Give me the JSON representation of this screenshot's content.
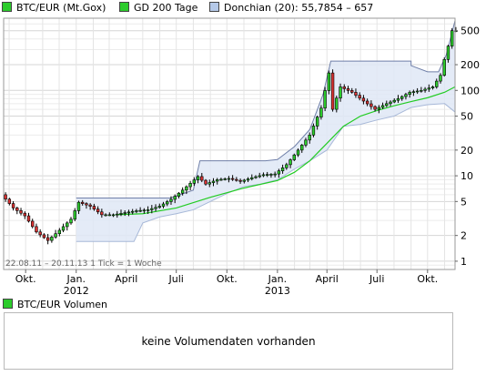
{
  "legend": [
    {
      "label": "BTC/EUR (Mt.Gox)",
      "color": "#2ccc2c"
    },
    {
      "label": "GD 200 Tage",
      "color": "#2ccc2c"
    },
    {
      "label": "Donchian (20): 55,7854 – 657",
      "color": "#b5c9e8"
    }
  ],
  "chart_data": {
    "type": "candlestick",
    "yscale": "log",
    "ylim": [
      0.8,
      700
    ],
    "y_ticks": [
      1,
      2,
      5,
      10,
      20,
      50,
      100,
      200,
      500
    ],
    "y_tick_labels": [
      "1",
      "2",
      "5",
      "10",
      "20",
      "50",
      "100",
      "200",
      "500"
    ],
    "x_range": [
      "2011-08-22",
      "2013-11-20"
    ],
    "x_ticks": [
      {
        "date": "2011-10-01",
        "label": "Okt."
      },
      {
        "date": "2012-01-01",
        "label": "Jan.",
        "sublabel": "2012"
      },
      {
        "date": "2012-04-01",
        "label": "April"
      },
      {
        "date": "2012-07-01",
        "label": "Juli"
      },
      {
        "date": "2012-10-01",
        "label": "Okt."
      },
      {
        "date": "2013-01-01",
        "label": "Jan.",
        "sublabel": "2013"
      },
      {
        "date": "2013-04-01",
        "label": "April"
      },
      {
        "date": "2013-07-01",
        "label": "Juli"
      },
      {
        "date": "2013-10-01",
        "label": "Okt."
      }
    ],
    "grid": true,
    "range_label": "22.08.11 – 20.11.13   1 Tick = 1 Woche",
    "price_path": [
      [
        "2011-08-22",
        6.0
      ],
      [
        "2011-09-12",
        4.2
      ],
      [
        "2011-10-03",
        3.4
      ],
      [
        "2011-10-24",
        2.2
      ],
      [
        "2011-11-14",
        1.75
      ],
      [
        "2011-12-05",
        2.3
      ],
      [
        "2011-12-26",
        3.1
      ],
      [
        "2012-01-09",
        4.9
      ],
      [
        "2012-01-30",
        4.4
      ],
      [
        "2012-02-20",
        3.5
      ],
      [
        "2012-03-12",
        3.5
      ],
      [
        "2012-04-02",
        3.7
      ],
      [
        "2012-04-23",
        3.9
      ],
      [
        "2012-05-14",
        4.0
      ],
      [
        "2012-06-04",
        4.4
      ],
      [
        "2012-06-25",
        5.3
      ],
      [
        "2012-07-16",
        6.8
      ],
      [
        "2012-08-13",
        9.8
      ],
      [
        "2012-08-27",
        8.0
      ],
      [
        "2012-09-17",
        9.0
      ],
      [
        "2012-10-08",
        9.3
      ],
      [
        "2012-10-29",
        8.6
      ],
      [
        "2012-11-19",
        9.5
      ],
      [
        "2012-12-10",
        10.3
      ],
      [
        "2012-12-31",
        10.5
      ],
      [
        "2013-01-21",
        13.5
      ],
      [
        "2013-02-11",
        20.0
      ],
      [
        "2013-03-04",
        30.0
      ],
      [
        "2013-03-25",
        62.0
      ],
      [
        "2013-04-08",
        160.0
      ],
      [
        "2013-04-15",
        60.0
      ],
      [
        "2013-04-29",
        110.0
      ],
      [
        "2013-05-20",
        95.0
      ],
      [
        "2013-06-10",
        75.0
      ],
      [
        "2013-07-01",
        60.0
      ],
      [
        "2013-07-22",
        70.0
      ],
      [
        "2013-08-12",
        80.0
      ],
      [
        "2013-09-02",
        95.0
      ],
      [
        "2013-09-23",
        100.0
      ],
      [
        "2013-10-14",
        110.0
      ],
      [
        "2013-10-28",
        150.0
      ],
      [
        "2013-11-04",
        230.0
      ],
      [
        "2013-11-11",
        330.0
      ],
      [
        "2013-11-18",
        500.0
      ]
    ],
    "sma200_path": [
      [
        "2012-03-12",
        3.5
      ],
      [
        "2012-05-01",
        3.6
      ],
      [
        "2012-07-01",
        4.2
      ],
      [
        "2012-09-01",
        5.6
      ],
      [
        "2012-11-01",
        7.2
      ],
      [
        "2013-01-01",
        8.8
      ],
      [
        "2013-02-01",
        11.0
      ],
      [
        "2013-03-01",
        15.0
      ],
      [
        "2013-04-01",
        24.0
      ],
      [
        "2013-05-01",
        38.0
      ],
      [
        "2013-06-01",
        50.0
      ],
      [
        "2013-07-01",
        58.0
      ],
      [
        "2013-08-01",
        66.0
      ],
      [
        "2013-09-01",
        74.0
      ],
      [
        "2013-10-01",
        82.0
      ],
      [
        "2013-11-01",
        95.0
      ],
      [
        "2013-11-20",
        110.0
      ]
    ],
    "donchian_upper": [
      [
        "2012-01-01",
        5.5
      ],
      [
        "2012-04-01",
        5.5
      ],
      [
        "2012-06-20",
        5.5
      ],
      [
        "2012-08-01",
        6.8
      ],
      [
        "2012-08-13",
        15.0
      ],
      [
        "2012-12-10",
        15.0
      ],
      [
        "2013-01-01",
        15.5
      ],
      [
        "2013-02-01",
        22.0
      ],
      [
        "2013-03-01",
        35.0
      ],
      [
        "2013-03-25",
        90.0
      ],
      [
        "2013-04-08",
        220.0
      ],
      [
        "2013-09-01",
        220.0
      ],
      [
        "2013-09-01",
        195.0
      ],
      [
        "2013-10-01",
        165.0
      ],
      [
        "2013-10-21",
        165.0
      ],
      [
        "2013-11-04",
        260.0
      ],
      [
        "2013-11-20",
        657.0
      ]
    ],
    "donchian_lower": [
      [
        "2012-01-01",
        1.7
      ],
      [
        "2012-04-15",
        1.7
      ],
      [
        "2012-05-01",
        2.8
      ],
      [
        "2012-06-01",
        3.3
      ],
      [
        "2012-07-01",
        3.6
      ],
      [
        "2012-08-01",
        4.0
      ],
      [
        "2012-09-01",
        5.0
      ],
      [
        "2012-10-01",
        6.2
      ],
      [
        "2012-11-01",
        7.5
      ],
      [
        "2012-12-01",
        8.0
      ],
      [
        "2013-01-01",
        9.0
      ],
      [
        "2013-02-01",
        12.0
      ],
      [
        "2013-03-01",
        15.0
      ],
      [
        "2013-04-01",
        20.0
      ],
      [
        "2013-05-01",
        38.0
      ],
      [
        "2013-06-01",
        40.0
      ],
      [
        "2013-07-01",
        45.0
      ],
      [
        "2013-08-01",
        50.0
      ],
      [
        "2013-09-01",
        63.0
      ],
      [
        "2013-10-01",
        68.0
      ],
      [
        "2013-11-01",
        70.0
      ],
      [
        "2013-11-20",
        55.7854
      ]
    ]
  },
  "volume": {
    "label": "BTC/EUR Volumen",
    "message": "keine Volumendaten vorhanden"
  }
}
